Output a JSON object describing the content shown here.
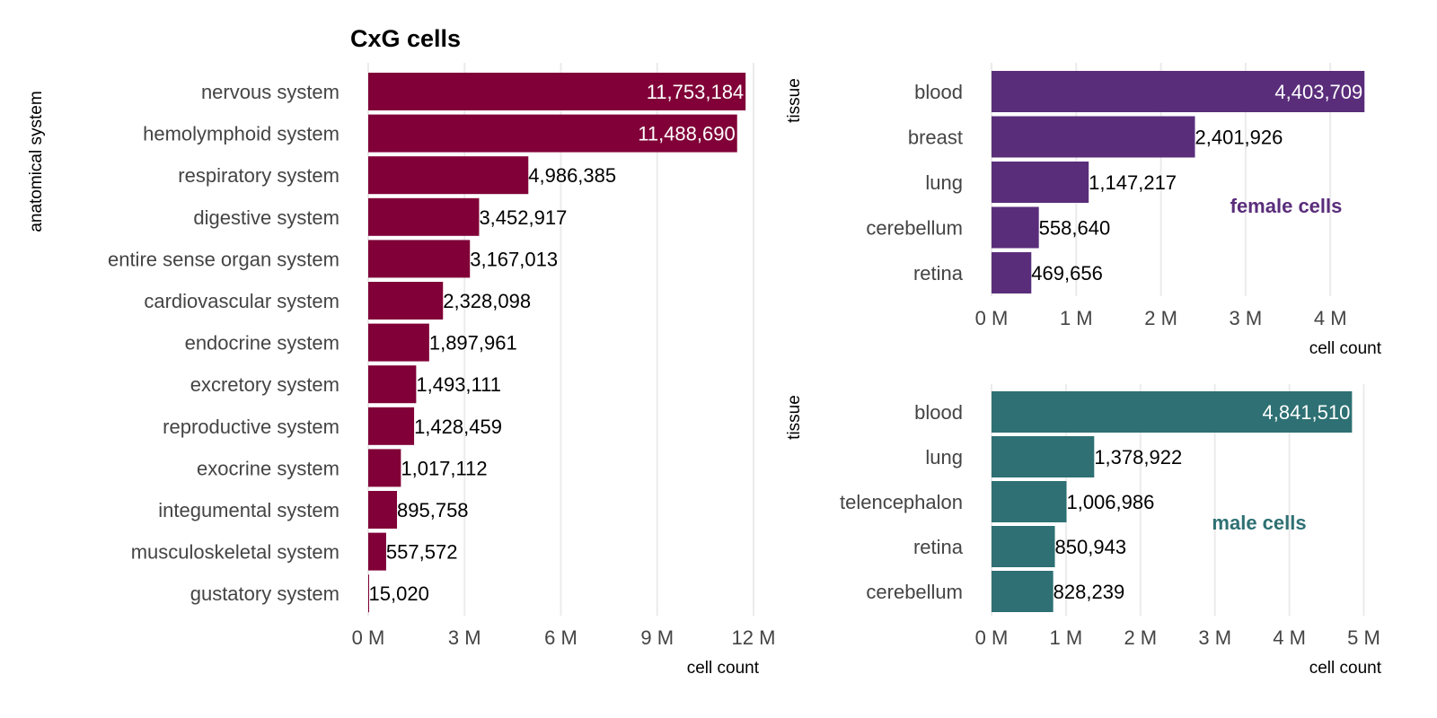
{
  "chart_data": [
    {
      "type": "bar",
      "orientation": "horizontal",
      "title": "CxG cells",
      "xlabel": "cell count",
      "ylabel": "anatomical system",
      "color": "#800037",
      "categories": [
        "nervous system",
        "hemolymphoid system",
        "respiratory system",
        "digestive system",
        "entire sense organ system",
        "cardiovascular system",
        "endocrine system",
        "excretory system",
        "reproductive system",
        "exocrine system",
        "integumental system",
        "musculoskeletal system",
        "gustatory system"
      ],
      "values": [
        11753184,
        11488690,
        4986385,
        3452917,
        3167013,
        2328098,
        1897961,
        1493111,
        1428459,
        1017112,
        895758,
        557572,
        15020
      ],
      "labels": [
        "11,753,184",
        "11,488,690",
        "4,986,385",
        "3,452,917",
        "3,167,013",
        "2,328,098",
        "1,897,961",
        "1,493,111",
        "1,428,459",
        "1,017,112",
        "895,758",
        "557,572",
        "15,020"
      ],
      "xticks": [
        "0 M",
        "3 M",
        "6 M",
        "9 M",
        "12 M"
      ],
      "xtick_values": [
        0,
        3,
        6,
        9,
        12
      ],
      "xlim": [
        0,
        12
      ]
    },
    {
      "type": "bar",
      "orientation": "horizontal",
      "annotation": "female cells",
      "xlabel": "cell count",
      "ylabel": "tissue",
      "color": "#5a2d7b",
      "categories": [
        "blood",
        "breast",
        "lung",
        "cerebellum",
        "retina"
      ],
      "values": [
        4403709,
        2401926,
        1147217,
        558640,
        469656
      ],
      "labels": [
        "4,403,709",
        "2,401,926",
        "1,147,217",
        "558,640",
        "469,656"
      ],
      "xticks": [
        "0 M",
        "1 M",
        "2 M",
        "3 M",
        "4 M"
      ],
      "xtick_values": [
        0,
        1,
        2,
        3,
        4
      ],
      "xlim": [
        0,
        4.4
      ]
    },
    {
      "type": "bar",
      "orientation": "horizontal",
      "annotation": "male cells",
      "xlabel": "cell count",
      "ylabel": "tissue",
      "color": "#2e7073",
      "categories": [
        "blood",
        "lung",
        "telencephalon",
        "retina",
        "cerebellum"
      ],
      "values": [
        4841510,
        1378922,
        1006986,
        850943,
        828239
      ],
      "labels": [
        "4,841,510",
        "1,378,922",
        "1,006,986",
        "850,943",
        "828,239"
      ],
      "xticks": [
        "0 M",
        "1 M",
        "2 M",
        "3 M",
        "4 M",
        "5 M"
      ],
      "xtick_values": [
        0,
        1,
        2,
        3,
        4,
        5
      ],
      "xlim": [
        0,
        5
      ]
    }
  ]
}
